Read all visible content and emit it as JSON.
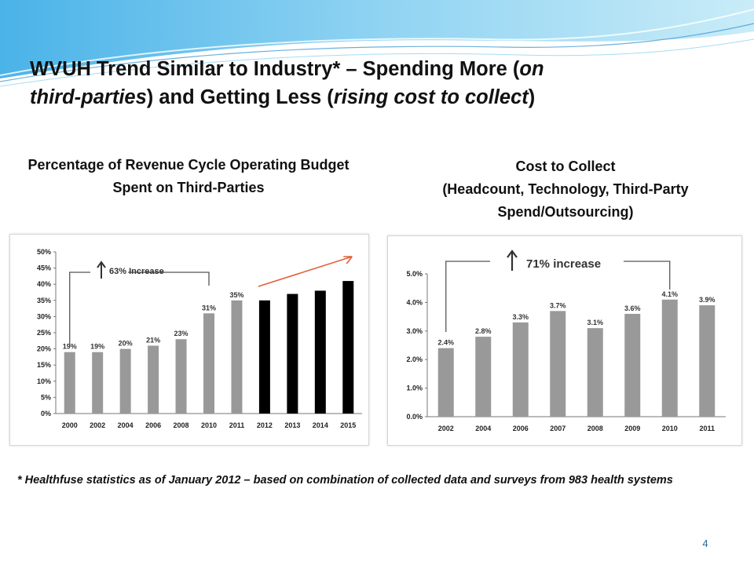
{
  "slide": {
    "title_line1_part1": "WVUH Trend Similar to Industry*  – Spending More (",
    "title_line1_italic": "on",
    "title_line2_italic1": "third-parties",
    "title_line2_part": ") and Getting Less (",
    "title_line2_italic2": "rising cost to collect",
    "title_line2_end": ")",
    "footnote": "* Healthfuse statistics as of January 2012 – based on combination of collected data and surveys from 983 health systems",
    "page_number": "4"
  },
  "chart_data": [
    {
      "type": "bar",
      "heading": "Percentage of Revenue Cycle Operating Budget Spent on Third-Parties",
      "categories": [
        "2000",
        "2002",
        "2004",
        "2006",
        "2008",
        "2010",
        "2011",
        "2012",
        "2013",
        "2014",
        "2015"
      ],
      "values": [
        19,
        19,
        20,
        21,
        23,
        31,
        35,
        35,
        37,
        38,
        41
      ],
      "data_labels": [
        "19%",
        "19%",
        "20%",
        "21%",
        "23%",
        "31%",
        "35%",
        "",
        "",
        "",
        ""
      ],
      "series_colors": [
        "#999999",
        "#999999",
        "#999999",
        "#999999",
        "#999999",
        "#999999",
        "#999999",
        "#000000",
        "#000000",
        "#000000",
        "#000000"
      ],
      "ylim": [
        0,
        50
      ],
      "yticks": [
        "0%",
        "5%",
        "10%",
        "15%",
        "20%",
        "25%",
        "30%",
        "35%",
        "40%",
        "45%",
        "50%"
      ],
      "annotation": "63% Increase",
      "trend_arrow_color": "#e0603a",
      "grid": false
    },
    {
      "type": "bar",
      "heading_line1": "Cost to Collect",
      "heading_line2": "(Headcount, Technology, Third-Party Spend/Outsourcing)",
      "categories": [
        "2002",
        "2004",
        "2006",
        "2007",
        "2008",
        "2009",
        "2010",
        "2011"
      ],
      "values": [
        2.4,
        2.8,
        3.3,
        3.7,
        3.1,
        3.6,
        4.1,
        3.9
      ],
      "data_labels": [
        "2.4%",
        "2.8%",
        "3.3%",
        "3.7%",
        "3.1%",
        "3.6%",
        "4.1%",
        "3.9%"
      ],
      "bar_color": "#999999",
      "ylim": [
        0,
        5
      ],
      "yticks": [
        "0.0%",
        "1.0%",
        "2.0%",
        "3.0%",
        "4.0%",
        "5.0%"
      ],
      "annotation": "71% increase",
      "grid": false
    }
  ]
}
